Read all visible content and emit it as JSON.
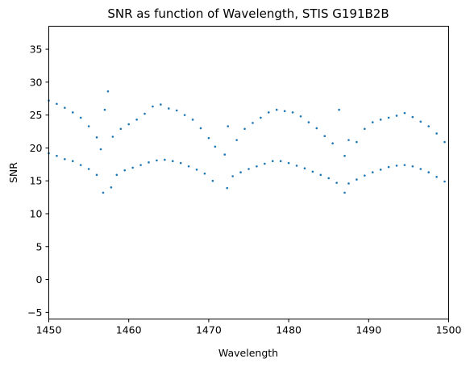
{
  "chart_data": {
    "type": "scatter",
    "title": "SNR as function of Wavelength, STIS G191B2B",
    "xlabel": "Wavelength",
    "ylabel": "SNR",
    "xlim": [
      1450,
      1500
    ],
    "ylim": [
      -6,
      38.5
    ],
    "xticks": [
      "1450",
      "1460",
      "1470",
      "1480",
      "1490",
      "1500"
    ],
    "yticks": [
      "−5",
      "0",
      "5",
      "10",
      "15",
      "20",
      "25",
      "30",
      "35"
    ],
    "marker_color": "#1f77b4",
    "grid": false,
    "series": [
      {
        "points": [
          [
            1450.0,
            19.2
          ],
          [
            1451.0,
            18.8
          ],
          [
            1452.0,
            18.3
          ],
          [
            1453.0,
            18.0
          ],
          [
            1454.0,
            17.4
          ],
          [
            1455.0,
            16.8
          ],
          [
            1456.0,
            15.9
          ],
          [
            1456.8,
            13.2
          ],
          [
            1457.8,
            14.0
          ],
          [
            1458.5,
            15.9
          ],
          [
            1459.5,
            16.6
          ],
          [
            1460.5,
            17.0
          ],
          [
            1461.5,
            17.4
          ],
          [
            1462.5,
            17.8
          ],
          [
            1463.5,
            18.1
          ],
          [
            1464.5,
            18.2
          ],
          [
            1465.5,
            18.0
          ],
          [
            1466.5,
            17.7
          ],
          [
            1467.5,
            17.2
          ],
          [
            1468.5,
            16.7
          ],
          [
            1469.5,
            16.1
          ],
          [
            1470.5,
            15.0
          ],
          [
            1472.3,
            13.9
          ],
          [
            1473.0,
            15.7
          ],
          [
            1474.0,
            16.3
          ],
          [
            1475.0,
            16.8
          ],
          [
            1476.0,
            17.2
          ],
          [
            1477.0,
            17.6
          ],
          [
            1478.0,
            18.0
          ],
          [
            1479.0,
            18.0
          ],
          [
            1480.0,
            17.7
          ],
          [
            1481.0,
            17.3
          ],
          [
            1482.0,
            16.9
          ],
          [
            1483.0,
            16.4
          ],
          [
            1484.0,
            15.9
          ],
          [
            1485.0,
            15.4
          ],
          [
            1486.0,
            14.7
          ],
          [
            1487.0,
            13.2
          ],
          [
            1487.5,
            14.6
          ],
          [
            1488.5,
            15.2
          ],
          [
            1489.5,
            15.8
          ],
          [
            1490.5,
            16.3
          ],
          [
            1491.5,
            16.7
          ],
          [
            1492.5,
            17.1
          ],
          [
            1493.5,
            17.3
          ],
          [
            1494.5,
            17.4
          ],
          [
            1495.5,
            17.2
          ],
          [
            1496.5,
            16.8
          ],
          [
            1497.5,
            16.3
          ],
          [
            1498.5,
            15.6
          ],
          [
            1499.5,
            14.9
          ]
        ]
      },
      {
        "points": [
          [
            1450.0,
            27.2
          ],
          [
            1451.0,
            26.7
          ],
          [
            1452.0,
            26.1
          ],
          [
            1453.0,
            25.4
          ],
          [
            1454.0,
            24.6
          ],
          [
            1455.0,
            23.3
          ],
          [
            1456.0,
            21.6
          ],
          [
            1456.5,
            19.8
          ],
          [
            1457.0,
            25.8
          ],
          [
            1457.4,
            28.6
          ],
          [
            1458.0,
            21.7
          ],
          [
            1459.0,
            22.9
          ],
          [
            1460.0,
            23.6
          ],
          [
            1461.0,
            24.3
          ],
          [
            1462.0,
            25.2
          ],
          [
            1463.0,
            26.3
          ],
          [
            1464.0,
            26.6
          ],
          [
            1465.0,
            26.0
          ],
          [
            1466.0,
            25.7
          ],
          [
            1467.0,
            25.0
          ],
          [
            1468.0,
            24.3
          ],
          [
            1469.0,
            23.0
          ],
          [
            1470.0,
            21.5
          ],
          [
            1470.8,
            20.2
          ],
          [
            1472.0,
            19.0
          ],
          [
            1472.4,
            23.3
          ],
          [
            1473.5,
            21.2
          ],
          [
            1474.5,
            22.9
          ],
          [
            1475.5,
            23.8
          ],
          [
            1476.5,
            24.6
          ],
          [
            1477.5,
            25.4
          ],
          [
            1478.5,
            25.8
          ],
          [
            1479.5,
            25.6
          ],
          [
            1480.5,
            25.4
          ],
          [
            1481.5,
            24.8
          ],
          [
            1482.5,
            23.9
          ],
          [
            1483.5,
            23.0
          ],
          [
            1484.5,
            21.8
          ],
          [
            1485.5,
            20.7
          ],
          [
            1486.3,
            25.8
          ],
          [
            1487.0,
            18.8
          ],
          [
            1487.5,
            21.2
          ],
          [
            1488.5,
            20.9
          ],
          [
            1489.5,
            22.9
          ],
          [
            1490.5,
            23.9
          ],
          [
            1491.5,
            24.3
          ],
          [
            1492.5,
            24.6
          ],
          [
            1493.5,
            24.9
          ],
          [
            1494.5,
            25.3
          ],
          [
            1495.5,
            24.7
          ],
          [
            1496.5,
            24.0
          ],
          [
            1497.5,
            23.3
          ],
          [
            1498.5,
            22.2
          ],
          [
            1499.5,
            20.9
          ]
        ]
      }
    ]
  }
}
